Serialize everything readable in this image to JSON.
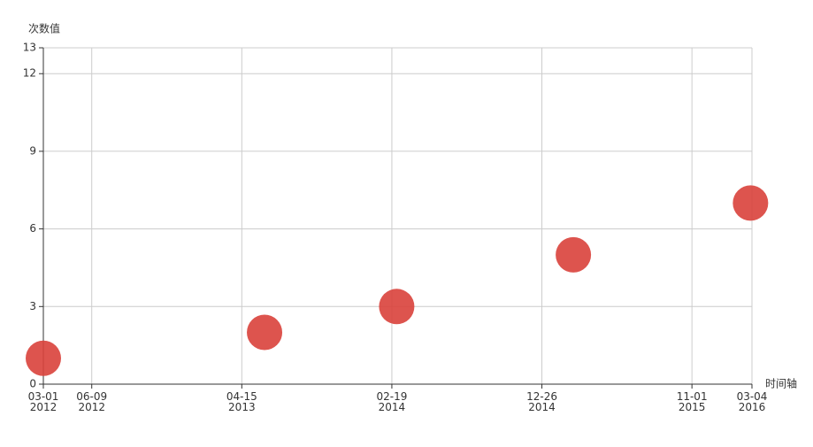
{
  "chart_data": {
    "type": "scatter",
    "x_axis_name": "时间轴",
    "y_axis_name": "次数值",
    "series": [
      {
        "color": "#d9413b",
        "x": [
          "2012-03-01",
          "2013-06-01",
          "2014-03-01",
          "2015-03-01",
          "2016-03-01"
        ],
        "values": [
          1,
          2,
          3,
          5,
          7
        ]
      }
    ],
    "xlim": [
      "2012-03-01",
      "2016-03-04"
    ],
    "xticks": [
      {
        "value": "2012-03-01",
        "label": [
          "03-01",
          "2012"
        ]
      },
      {
        "value": "2012-06-09",
        "label": [
          "06-09",
          "2012"
        ]
      },
      {
        "value": "2013-04-15",
        "label": [
          "04-15",
          "2013"
        ]
      },
      {
        "value": "2014-02-19",
        "label": [
          "02-19",
          "2014"
        ]
      },
      {
        "value": "2014-12-26",
        "label": [
          "12-26",
          "2014"
        ]
      },
      {
        "value": "2015-11-01",
        "label": [
          "11-01",
          "2015"
        ]
      },
      {
        "value": "2016-03-04",
        "label": [
          "03-04",
          "2016"
        ]
      }
    ],
    "ylim": [
      0,
      13
    ],
    "yticks": [
      0,
      3,
      6,
      9,
      12,
      13
    ],
    "grid": true
  }
}
